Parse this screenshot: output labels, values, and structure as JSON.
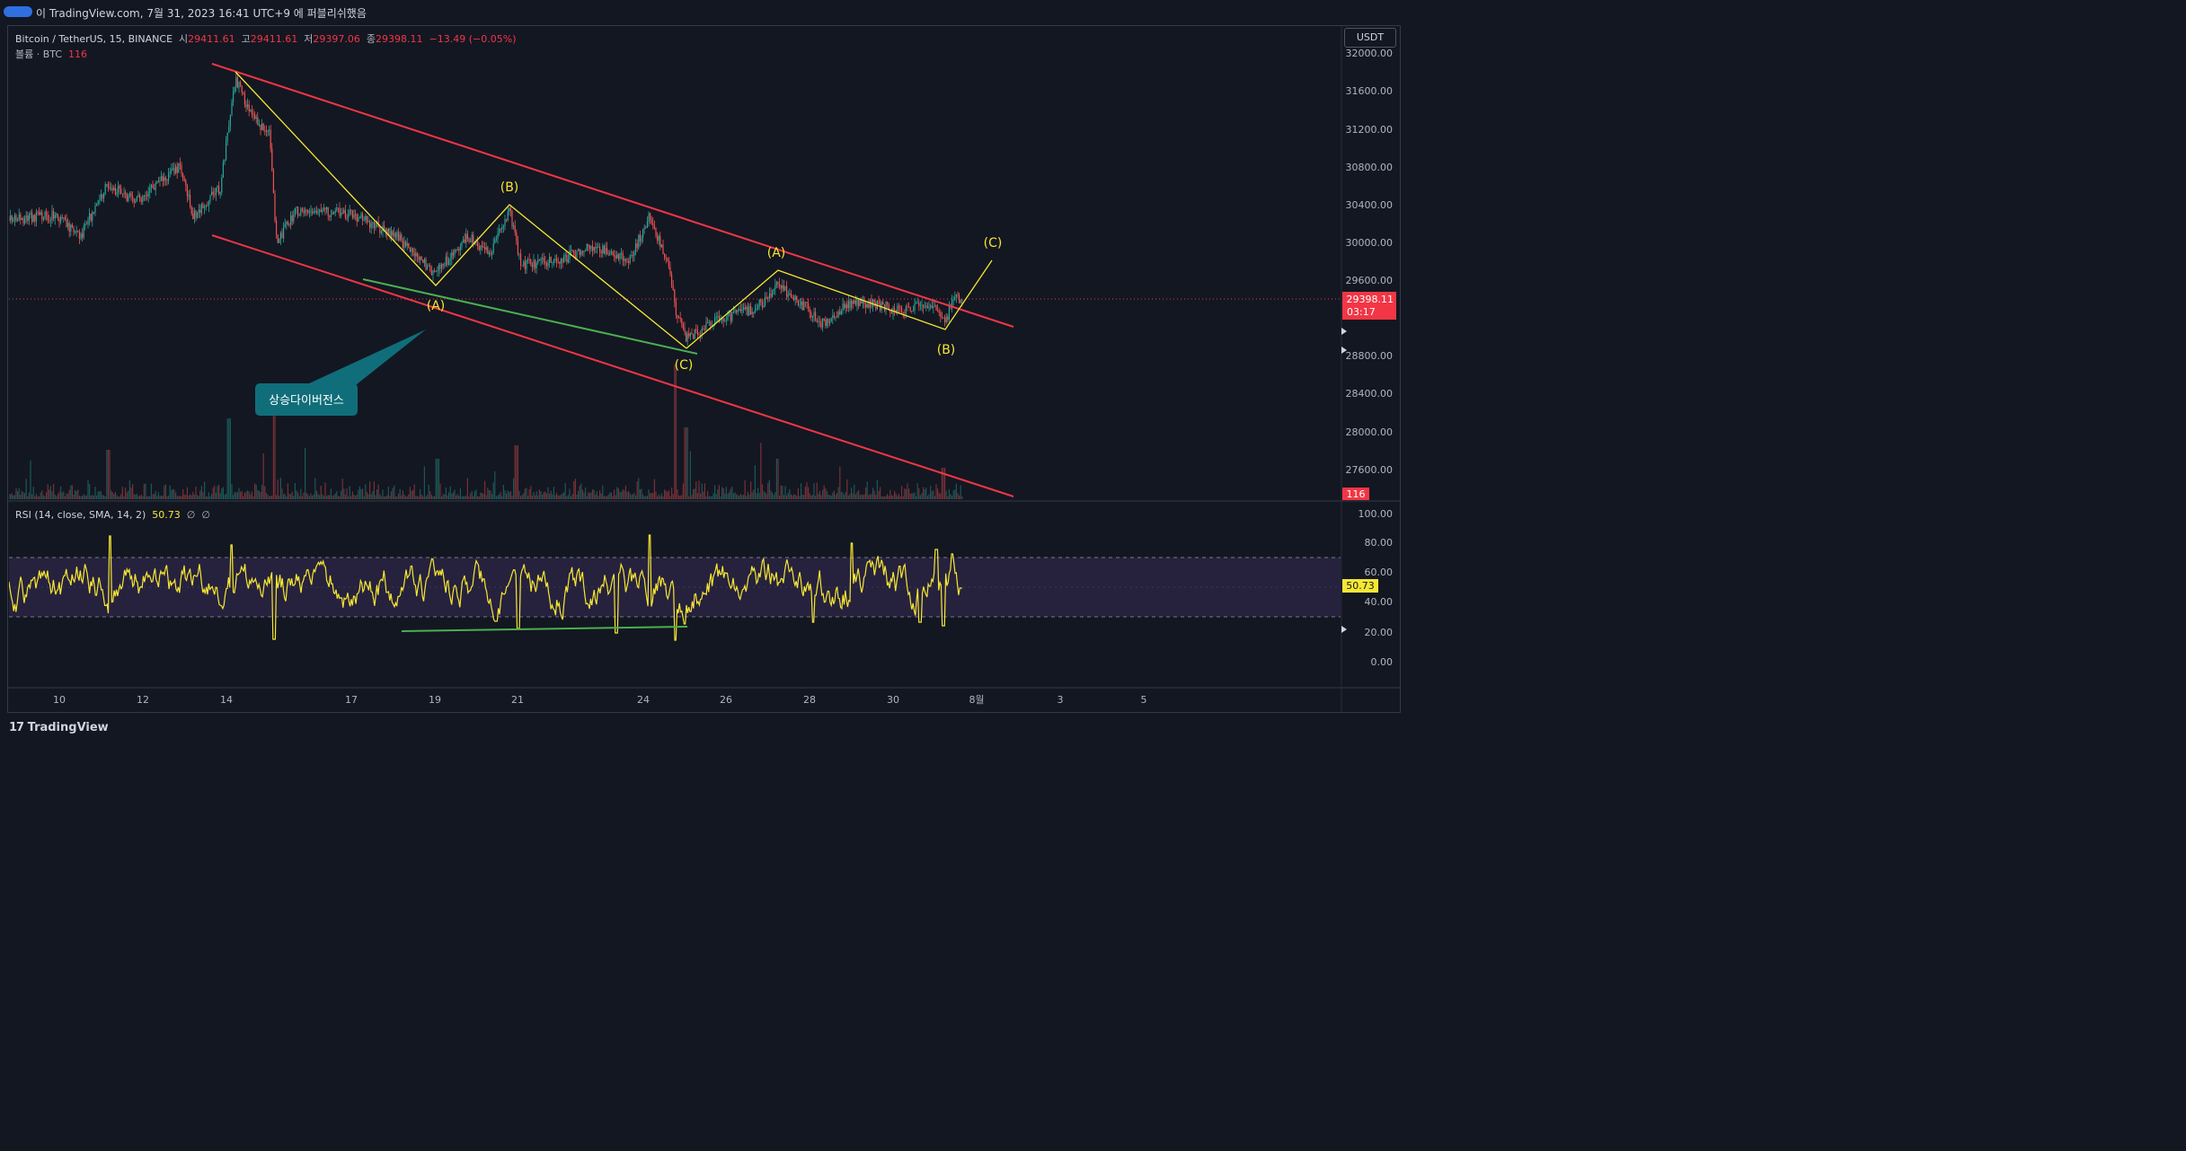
{
  "topbar": {
    "author_prefix": "이",
    "info": "TradingView.com, 7월 31, 2023 16:41 UTC+9 에 퍼블리쉬했음"
  },
  "legend": {
    "symbol": "Bitcoin / TetherUS, 15, BINANCE",
    "open_label": "시",
    "open": "29411.61",
    "high_label": "고",
    "high": "29411.61",
    "low_label": "저",
    "low": "29397.06",
    "close_label": "종",
    "close": "29398.11",
    "change": "−13.49 (−0.05%)",
    "volume_label": "볼륨 · BTC",
    "volume": "116"
  },
  "currency": "USDT",
  "rsi_legend": {
    "label": "RSI (14, close, SMA, 14, 2)",
    "value": "50.73",
    "extra1": "∅",
    "extra2": "∅"
  },
  "price_axis": [
    "32000.00",
    "31600.00",
    "31200.00",
    "30800.00",
    "30400.00",
    "30000.00",
    "29600.00",
    "28800.00",
    "28400.00",
    "28000.00",
    "27600.00"
  ],
  "price_tag": {
    "value": "29398.11",
    "timer": "03:17"
  },
  "volume_tag": "116",
  "rsi_axis": [
    "100.00",
    "80.00",
    "60.00",
    "40.00",
    "20.00",
    "0.00"
  ],
  "rsi_tag": "50.73",
  "time_axis": [
    "10",
    "12",
    "14",
    "17",
    "19",
    "21",
    "24",
    "26",
    "28",
    "30",
    "8월",
    "3",
    "5"
  ],
  "wave_labels": [
    "(A)",
    "(B)",
    "(C)",
    "(A)",
    "(B)",
    "(C)"
  ],
  "annotation": "상승다이버전스",
  "logo": "TradingView",
  "colors": {
    "up": "#26a69a",
    "down": "#ef5350",
    "channel": "#f23645",
    "wave": "#f7e733",
    "divergence": "#4caf50",
    "rsi_band": "#7e57c2",
    "callout": "#0f6e7a"
  }
}
